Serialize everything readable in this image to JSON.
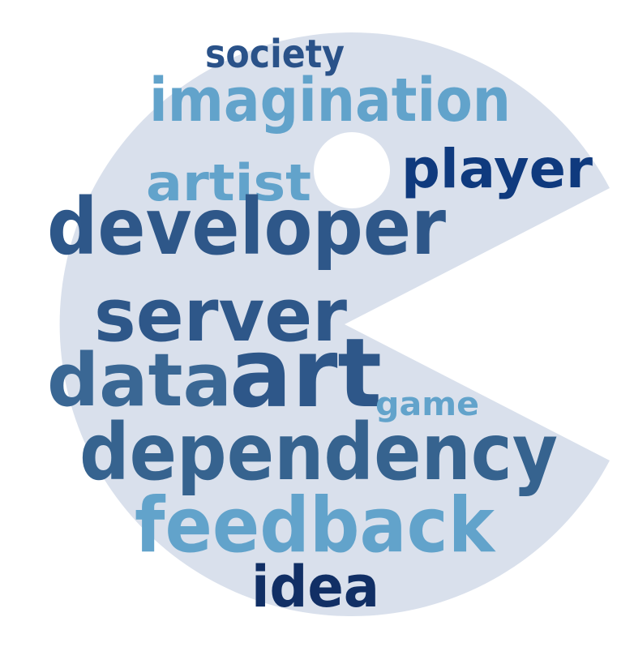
{
  "colors": {
    "background": "#ffffff",
    "shape_fill": "#d9e0ec",
    "eye_fill": "#ffffff",
    "dark_navy": "#112f65",
    "navy": "#0f3a7e",
    "mid_blue": "#2e5c8f",
    "steel_blue": "#3a6794",
    "light_blue": "#62a3cb"
  },
  "shape": "pac-man-silhouette",
  "words": [
    {
      "text": "society",
      "color": "#2a5289"
    },
    {
      "text": "imagination",
      "color": "#62a3cb"
    },
    {
      "text": "artist",
      "color": "#62a3cb"
    },
    {
      "text": "player",
      "color": "#0f3a7e"
    },
    {
      "text": "developer",
      "color": "#2e5789"
    },
    {
      "text": "server",
      "color": "#2e5789"
    },
    {
      "text": "data",
      "color": "#3a6794"
    },
    {
      "text": "art",
      "color": "#2e5789"
    },
    {
      "text": "game",
      "color": "#62a3cb"
    },
    {
      "text": "dependency",
      "color": "#36638f"
    },
    {
      "text": "feedback",
      "color": "#62a3cb"
    },
    {
      "text": "idea",
      "color": "#112f65"
    }
  ]
}
